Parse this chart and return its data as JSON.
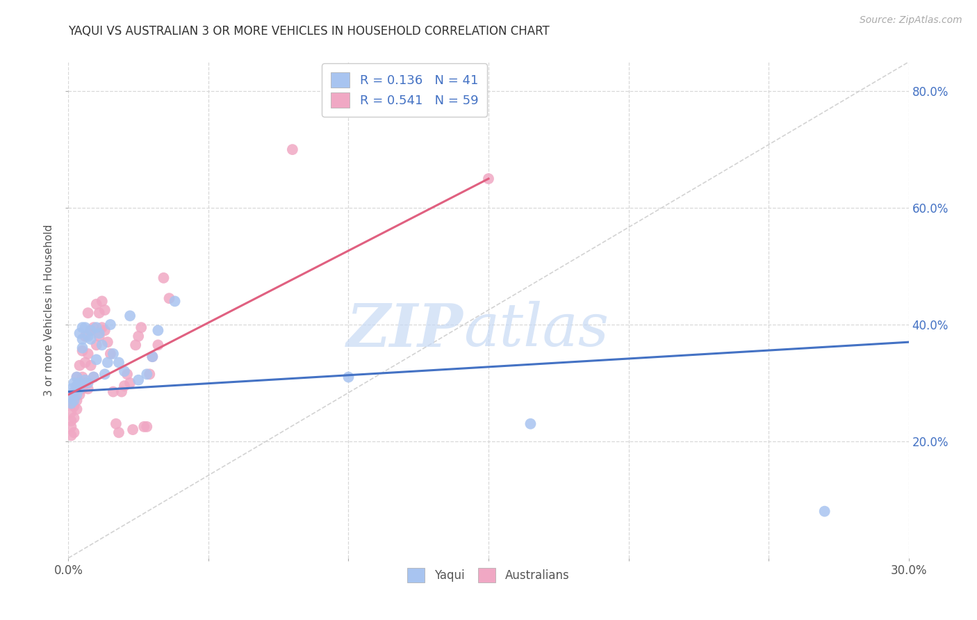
{
  "title": "YAQUI VS AUSTRALIAN 3 OR MORE VEHICLES IN HOUSEHOLD CORRELATION CHART",
  "source": "Source: ZipAtlas.com",
  "ylabel": "3 or more Vehicles in Household",
  "xmin": 0.0,
  "xmax": 0.3,
  "ymin": 0.0,
  "ymax": 0.85,
  "xticks": [
    0.0,
    0.05,
    0.1,
    0.15,
    0.2,
    0.25,
    0.3
  ],
  "yticks": [
    0.2,
    0.4,
    0.6,
    0.8
  ],
  "ytick_labels": [
    "20.0%",
    "40.0%",
    "60.0%",
    "80.0%"
  ],
  "yaqui_color": "#a8c4f0",
  "australian_color": "#f0a8c4",
  "yaqui_line_color": "#4472c4",
  "australian_line_color": "#e06080",
  "diagonal_color": "#c8c8c8",
  "watermark_zip": "ZIP",
  "watermark_atlas": "atlas",
  "legend_r_yaqui": "0.136",
  "legend_n_yaqui": "41",
  "legend_r_australian": "0.541",
  "legend_n_australian": "59",
  "legend_color": "#4472c4",
  "yaqui_x": [
    0.001,
    0.001,
    0.001,
    0.002,
    0.002,
    0.002,
    0.003,
    0.003,
    0.003,
    0.004,
    0.004,
    0.004,
    0.005,
    0.005,
    0.005,
    0.006,
    0.006,
    0.007,
    0.007,
    0.008,
    0.008,
    0.009,
    0.01,
    0.01,
    0.011,
    0.012,
    0.013,
    0.014,
    0.015,
    0.016,
    0.018,
    0.02,
    0.022,
    0.025,
    0.028,
    0.03,
    0.032,
    0.038,
    0.1,
    0.165,
    0.27
  ],
  "yaqui_y": [
    0.29,
    0.275,
    0.265,
    0.285,
    0.27,
    0.3,
    0.295,
    0.28,
    0.31,
    0.29,
    0.3,
    0.385,
    0.375,
    0.36,
    0.395,
    0.305,
    0.395,
    0.38,
    0.3,
    0.39,
    0.375,
    0.31,
    0.395,
    0.34,
    0.385,
    0.365,
    0.315,
    0.335,
    0.4,
    0.35,
    0.335,
    0.32,
    0.415,
    0.305,
    0.315,
    0.345,
    0.39,
    0.44,
    0.31,
    0.23,
    0.08
  ],
  "australian_x": [
    0.001,
    0.001,
    0.001,
    0.001,
    0.001,
    0.002,
    0.002,
    0.002,
    0.002,
    0.003,
    0.003,
    0.003,
    0.003,
    0.004,
    0.004,
    0.004,
    0.005,
    0.005,
    0.005,
    0.006,
    0.006,
    0.006,
    0.007,
    0.007,
    0.007,
    0.008,
    0.008,
    0.009,
    0.009,
    0.01,
    0.01,
    0.011,
    0.011,
    0.012,
    0.012,
    0.013,
    0.013,
    0.014,
    0.015,
    0.016,
    0.017,
    0.018,
    0.019,
    0.02,
    0.021,
    0.022,
    0.023,
    0.024,
    0.025,
    0.026,
    0.027,
    0.028,
    0.029,
    0.03,
    0.032,
    0.034,
    0.036,
    0.08,
    0.15
  ],
  "australian_y": [
    0.21,
    0.225,
    0.235,
    0.25,
    0.265,
    0.215,
    0.24,
    0.26,
    0.275,
    0.255,
    0.27,
    0.295,
    0.31,
    0.28,
    0.3,
    0.33,
    0.29,
    0.31,
    0.355,
    0.3,
    0.335,
    0.38,
    0.35,
    0.29,
    0.42,
    0.33,
    0.39,
    0.31,
    0.395,
    0.365,
    0.435,
    0.38,
    0.42,
    0.395,
    0.44,
    0.39,
    0.425,
    0.37,
    0.35,
    0.285,
    0.23,
    0.215,
    0.285,
    0.295,
    0.315,
    0.3,
    0.22,
    0.365,
    0.38,
    0.395,
    0.225,
    0.225,
    0.315,
    0.345,
    0.365,
    0.48,
    0.445,
    0.7,
    0.65
  ],
  "yaqui_trend_x": [
    0.0,
    0.3
  ],
  "yaqui_trend_y": [
    0.285,
    0.37
  ],
  "australian_trend_x": [
    0.0,
    0.15
  ],
  "australian_trend_y": [
    0.28,
    0.65
  ]
}
